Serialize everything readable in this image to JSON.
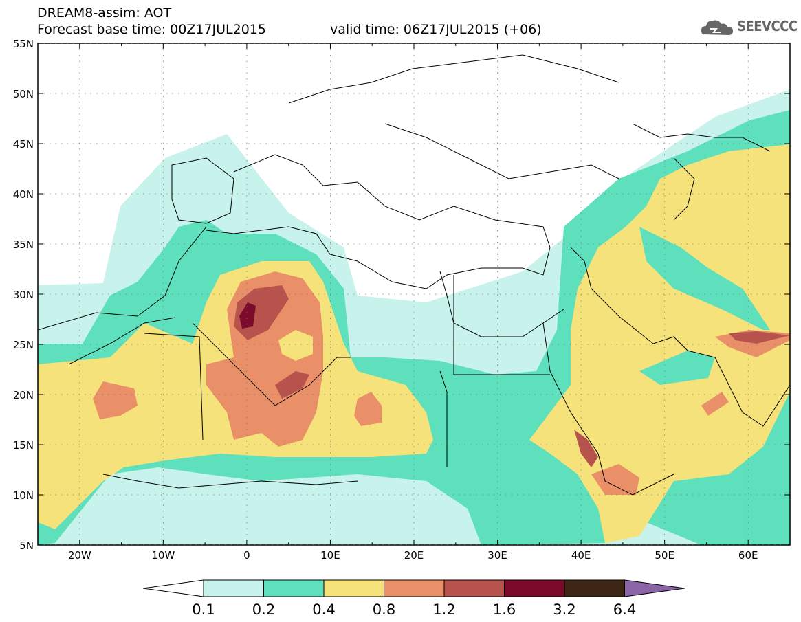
{
  "header": {
    "title": "DREAM8-assim: AOT",
    "base_time": "Forecast base time: 00Z17JUL2015",
    "valid_time": "valid time: 06Z17JUL2015 (+06)",
    "logo_text": "SEEVCCC"
  },
  "map": {
    "lat_labels": [
      "55N",
      "50N",
      "45N",
      "40N",
      "35N",
      "30N",
      "25N",
      "20N",
      "15N",
      "10N",
      "5N"
    ],
    "lon_labels": [
      "20W",
      "10W",
      "0",
      "10E",
      "20E",
      "30E",
      "40E",
      "50E",
      "60E"
    ],
    "colors": {
      "c1": "#c8f2ec",
      "c2": "#5fe0bc",
      "c3": "#f5e27a",
      "c4": "#ea9068",
      "c5": "#b8524c",
      "c6": "#7c0a2a",
      "c7": "#3d2616",
      "c8": "#8c64a8"
    }
  },
  "legend": {
    "labels": [
      "0.1",
      "0.2",
      "0.4",
      "0.8",
      "1.2",
      "1.6",
      "3.2",
      "6.4"
    ]
  }
}
